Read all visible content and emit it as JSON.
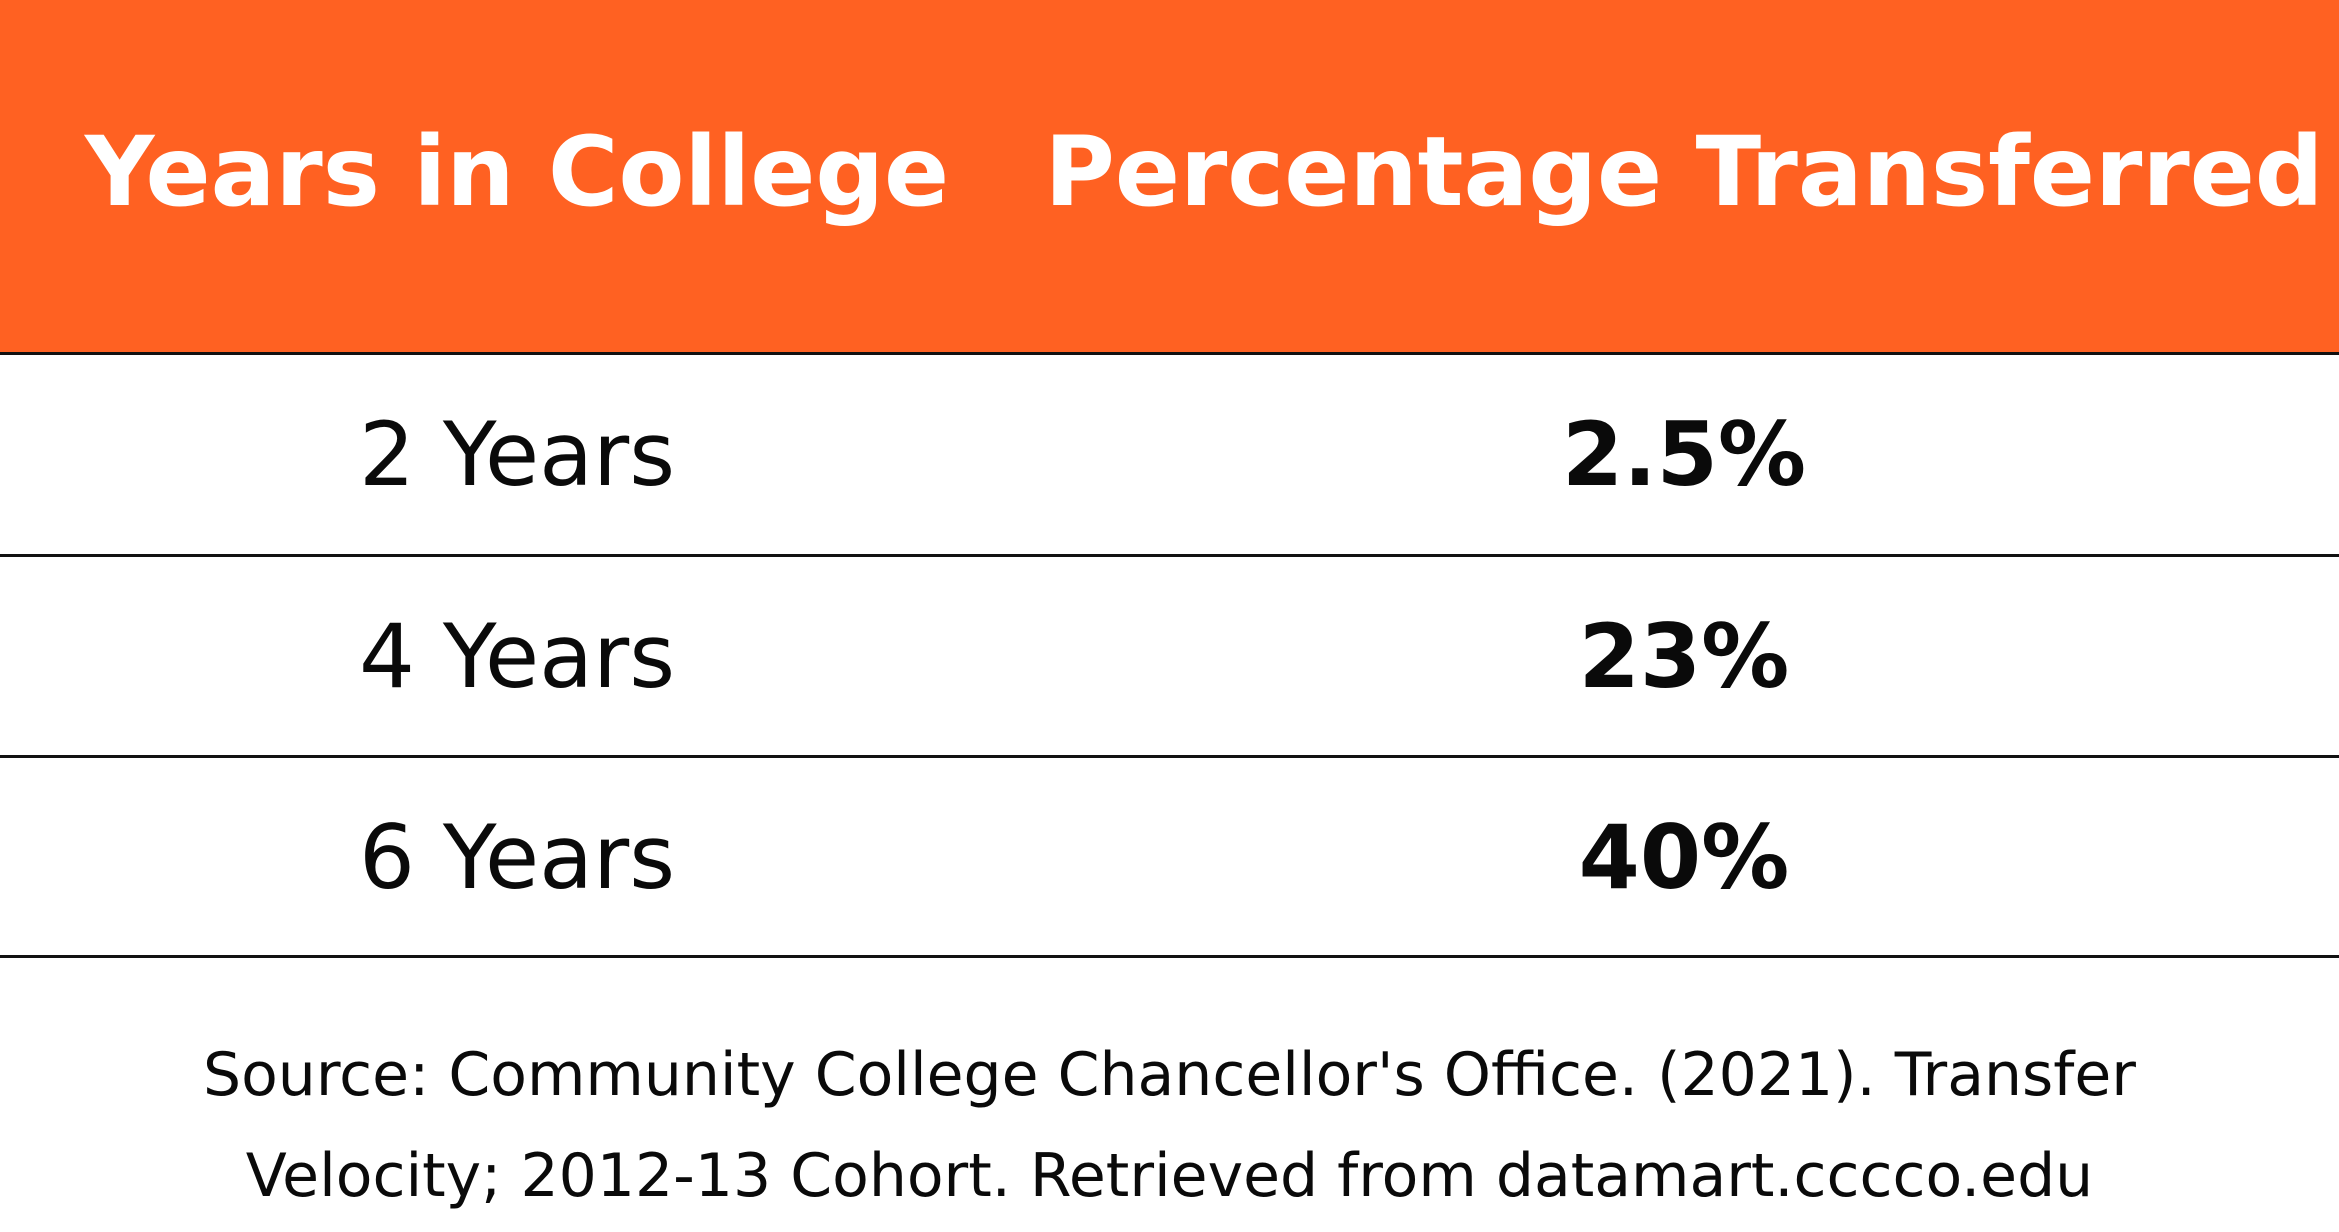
{
  "colors": {
    "header_background": "#ff6122",
    "header_text": "#ffffff",
    "body_text": "#0a0a0a",
    "rule": "#111111"
  },
  "chart_data": {
    "type": "table",
    "columns": [
      "Years in College",
      "Percentage Transferred"
    ],
    "rows": [
      [
        "2 Years",
        "2.5%"
      ],
      [
        "4 Years",
        "23%"
      ],
      [
        "6 Years",
        "40%"
      ]
    ]
  },
  "source": {
    "line1": "Source: Community College Chancellor's Office. (2021). Transfer",
    "line2": "Velocity; 2012-13 Cohort. Retrieved from datamart.cccco.edu"
  }
}
